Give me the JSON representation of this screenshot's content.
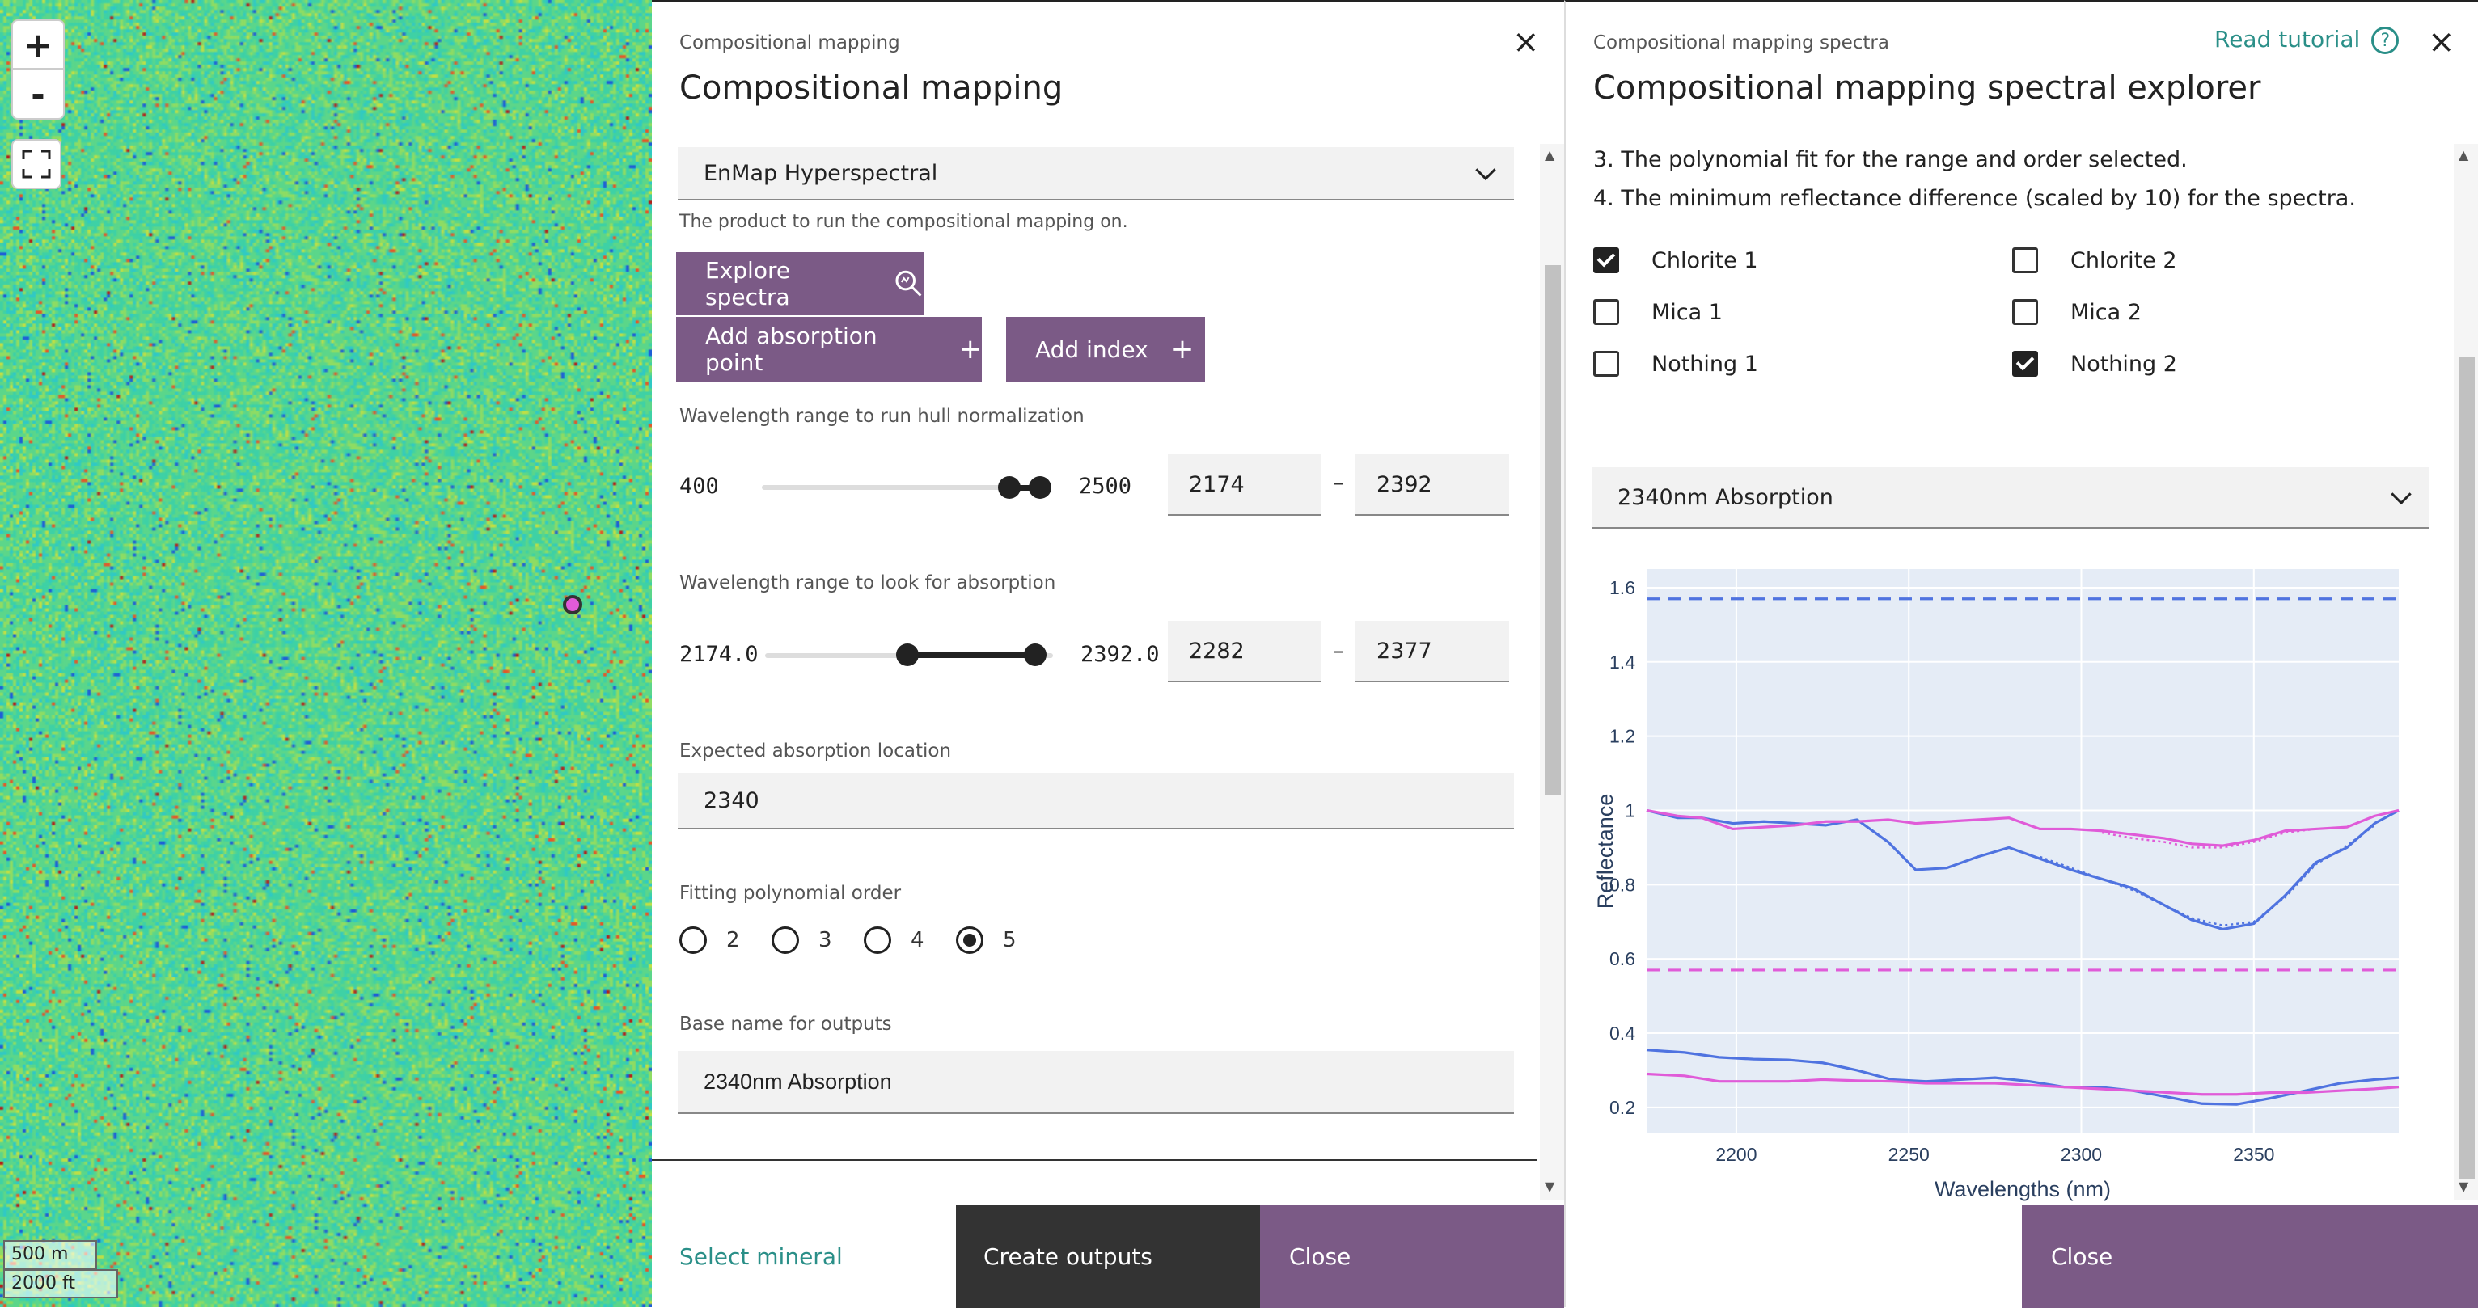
{
  "map": {
    "zoom_in": "+",
    "zoom_out": "-",
    "scale_metric": "500 m",
    "scale_imperial": "2000 ft",
    "fullscreen_icon": "fullscreen-icon"
  },
  "panel1": {
    "breadcrumb": "Compositional mapping",
    "title": "Compositional mapping",
    "close_icon": "×",
    "product_select": "EnMap Hyperspectral",
    "product_help": "The product to run the compositional mapping on.",
    "explore_button": "Explore spectra",
    "add_absorption_button": "Add absorption point",
    "add_index_button": "Add index",
    "plus": "+",
    "hull_label": "Wavelength range to run hull normalization",
    "hull_min": "400",
    "hull_max": "2500",
    "hull_from": "2174",
    "hull_to": "2392",
    "abs_label": "Wavelength range to look for absorption",
    "abs_min": "2174.0",
    "abs_max": "2392.0",
    "abs_from": "2282",
    "abs_to": "2377",
    "range_sep": "–",
    "expected_label": "Expected absorption location",
    "expected_value": "2340",
    "poly_label": "Fitting polynomial order",
    "poly_options": [
      "2",
      "3",
      "4",
      "5"
    ],
    "poly_selected": "5",
    "base_label": "Base name for outputs",
    "base_value": "2340nm Absorption",
    "footer_select": "Select mineral",
    "footer_create": "Create outputs",
    "footer_close": "Close"
  },
  "panel2": {
    "breadcrumb": "Compositional mapping spectra",
    "tutorial": "Read tutorial",
    "help_glyph": "?",
    "close_icon": "×",
    "title": "Compositional mapping spectral explorer",
    "line3": "3. The polynomial fit for the range and order selected.",
    "line4": "4. The minimum reflectance difference (scaled by 10) for the spectra.",
    "checkboxes": [
      {
        "label": "Chlorite 1",
        "checked": true
      },
      {
        "label": "Chlorite 2",
        "checked": false
      },
      {
        "label": "Mica 1",
        "checked": false
      },
      {
        "label": "Mica 2",
        "checked": false
      },
      {
        "label": "Nothing 1",
        "checked": false
      },
      {
        "label": "Nothing 2",
        "checked": true
      }
    ],
    "absorption_select": "2340nm Absorption",
    "footer_close": "Close"
  },
  "colors": {
    "accent": "#7b5a86",
    "dark_button": "#333333",
    "link": "#2a8f88",
    "series_blue": "#4f73e0",
    "series_magenta": "#e05bd8",
    "plot_bg": "#e5ecf6"
  },
  "chart_data": {
    "type": "line",
    "xlabel": "Wavelengths (nm)",
    "ylabel": "Reflectance",
    "xlim": [
      2174,
      2392
    ],
    "ylim": [
      0.13,
      1.65
    ],
    "xticks": [
      2200,
      2250,
      2300,
      2350
    ],
    "yticks": [
      0.2,
      0.4,
      0.6,
      0.8,
      1,
      1.2,
      1.4,
      1.6
    ],
    "ytick_labels": [
      "0.2",
      "0.4",
      "0.6",
      "0.8",
      "1",
      "1.2",
      "1.4",
      "1.6"
    ],
    "series": [
      {
        "color": "#4f73e0",
        "style": "solid",
        "x": [
          2174,
          2183,
          2190,
          2199,
          2208,
          2217,
          2226,
          2235,
          2244,
          2252,
          2261,
          2270,
          2279,
          2288,
          2297,
          2306,
          2315,
          2324,
          2332,
          2341,
          2350,
          2359,
          2368,
          2377,
          2385,
          2392
        ],
        "y": [
          1.0,
          0.98,
          0.98,
          0.965,
          0.97,
          0.965,
          0.96,
          0.975,
          0.915,
          0.84,
          0.845,
          0.875,
          0.9,
          0.87,
          0.84,
          0.815,
          0.79,
          0.745,
          0.705,
          0.68,
          0.695,
          0.77,
          0.86,
          0.9,
          0.965,
          1.0
        ]
      },
      {
        "color": "#4f73e0",
        "style": "dot",
        "x": [
          2288,
          2297,
          2306,
          2315,
          2324,
          2332,
          2341,
          2350,
          2359,
          2368,
          2377,
          2385
        ],
        "y": [
          0.875,
          0.845,
          0.815,
          0.785,
          0.745,
          0.71,
          0.69,
          0.7,
          0.765,
          0.855,
          0.905,
          0.96
        ]
      },
      {
        "color": "#e05bd8",
        "style": "solid",
        "x": [
          2174,
          2183,
          2190,
          2199,
          2208,
          2217,
          2226,
          2235,
          2244,
          2252,
          2261,
          2270,
          2279,
          2288,
          2297,
          2306,
          2315,
          2324,
          2332,
          2341,
          2350,
          2359,
          2368,
          2377,
          2385,
          2392
        ],
        "y": [
          1.0,
          0.985,
          0.98,
          0.95,
          0.955,
          0.96,
          0.97,
          0.97,
          0.975,
          0.965,
          0.97,
          0.975,
          0.98,
          0.95,
          0.95,
          0.945,
          0.935,
          0.925,
          0.91,
          0.905,
          0.92,
          0.945,
          0.95,
          0.955,
          0.985,
          1.0
        ]
      },
      {
        "color": "#e05bd8",
        "style": "dot",
        "x": [
          2306,
          2315,
          2324,
          2332,
          2341,
          2350,
          2359,
          2368
        ],
        "y": [
          0.94,
          0.925,
          0.915,
          0.9,
          0.9,
          0.915,
          0.94,
          0.95
        ]
      },
      {
        "color": "#4f73e0",
        "style": "solid",
        "x": [
          2174,
          2185,
          2195,
          2205,
          2215,
          2225,
          2235,
          2245,
          2255,
          2265,
          2275,
          2285,
          2295,
          2305,
          2315,
          2325,
          2335,
          2345,
          2355,
          2365,
          2375,
          2385,
          2392
        ],
        "y": [
          0.355,
          0.348,
          0.335,
          0.33,
          0.328,
          0.32,
          0.3,
          0.275,
          0.27,
          0.275,
          0.28,
          0.27,
          0.255,
          0.255,
          0.245,
          0.228,
          0.21,
          0.208,
          0.225,
          0.245,
          0.265,
          0.275,
          0.28
        ]
      },
      {
        "color": "#e05bd8",
        "style": "solid",
        "x": [
          2174,
          2185,
          2195,
          2205,
          2215,
          2225,
          2235,
          2245,
          2255,
          2265,
          2275,
          2285,
          2295,
          2305,
          2315,
          2325,
          2335,
          2345,
          2355,
          2365,
          2375,
          2385,
          2392
        ],
        "y": [
          0.29,
          0.285,
          0.27,
          0.27,
          0.27,
          0.275,
          0.272,
          0.27,
          0.265,
          0.265,
          0.265,
          0.26,
          0.255,
          0.25,
          0.245,
          0.24,
          0.235,
          0.235,
          0.24,
          0.24,
          0.245,
          0.25,
          0.255
        ]
      },
      {
        "color": "#4f73e0",
        "style": "dash",
        "x": [
          2174,
          2392
        ],
        "y": [
          1.57,
          1.57
        ]
      },
      {
        "color": "#e05bd8",
        "style": "dash",
        "x": [
          2174,
          2392
        ],
        "y": [
          0.57,
          0.57
        ]
      }
    ]
  }
}
